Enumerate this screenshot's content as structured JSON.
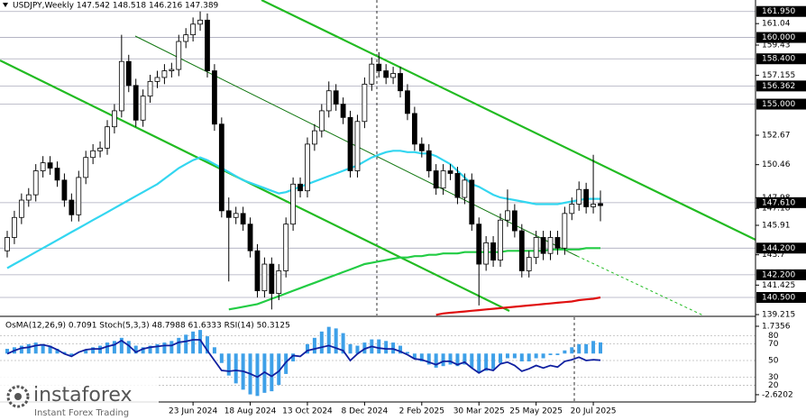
{
  "chart_data": {
    "type": "candlestick",
    "title": "USDJPY,Weekly  147.542 148.518 146.216 147.389",
    "categories": [
      null,
      null,
      null,
      null,
      null,
      null,
      null,
      null,
      null,
      null,
      null,
      null,
      null,
      null,
      null,
      null,
      null,
      null,
      null,
      null,
      null,
      null,
      null,
      null,
      null,
      null,
      "23 Jun 2024",
      null,
      null,
      null,
      null,
      null,
      null,
      null,
      "18 Aug 2024",
      null,
      null,
      null,
      null,
      null,
      null,
      null,
      "13 Oct 2024",
      null,
      null,
      null,
      null,
      null,
      null,
      null,
      "8 Dec 2024",
      null,
      null,
      null,
      null,
      null,
      null,
      null,
      "2 Feb 2025",
      null,
      null,
      null,
      null,
      null,
      null,
      null,
      "30 Mar 2025",
      null,
      null,
      null,
      null,
      null,
      null,
      null,
      "25 May 2025",
      null,
      null,
      null,
      null,
      null,
      null,
      null,
      "20 Jul 2025",
      null
    ],
    "open": [
      144.0,
      145.0,
      146.5,
      147.8,
      148.2,
      150.0,
      150.6,
      150.2,
      149.3,
      147.8,
      146.7,
      149.5,
      151.0,
      151.5,
      151.7,
      153.3,
      154.5,
      158.2,
      156.4,
      153.8,
      155.6,
      156.7,
      157.0,
      157.5,
      157.6,
      159.7,
      160.2,
      161.0,
      161.3,
      157.5,
      153.5,
      147.0,
      146.5,
      146.8,
      146.0,
      144.0,
      141.0,
      143.0,
      140.8,
      142.5,
      146.0,
      149.0,
      148.5,
      152.0,
      153.0,
      154.5,
      156.0,
      155.0,
      154.0,
      150.0,
      153.7,
      156.5,
      158.0,
      157.5,
      157.0,
      157.3,
      156.0,
      154.3,
      152.0,
      151.5,
      150.0,
      148.7,
      150.0,
      149.8,
      148.0,
      149.3,
      146.0,
      143.0,
      144.6,
      143.3,
      146.3,
      147.0,
      145.5,
      142.5,
      143.5,
      145.0,
      143.8,
      145.0,
      144.2,
      146.8,
      147.5,
      148.6,
      147.3,
      147.542
    ],
    "high": [
      145.5,
      147.0,
      148.3,
      148.7,
      150.5,
      151.1,
      151.1,
      150.7,
      149.8,
      148.3,
      150.0,
      151.5,
      152.0,
      152.2,
      153.8,
      155.0,
      160.2,
      158.7,
      156.9,
      156.1,
      157.2,
      157.5,
      158.0,
      158.1,
      160.2,
      160.7,
      161.5,
      161.95,
      161.8,
      158.0,
      154.0,
      148.0,
      147.3,
      147.3,
      146.5,
      144.5,
      143.5,
      143.5,
      143.0,
      146.5,
      149.5,
      149.5,
      152.5,
      153.5,
      155.0,
      156.7,
      156.5,
      155.5,
      154.5,
      154.2,
      157.0,
      158.5,
      158.9,
      158.0,
      157.8,
      157.8,
      156.5,
      154.8,
      152.5,
      152.0,
      150.5,
      150.5,
      150.5,
      150.3,
      149.8,
      149.8,
      146.5,
      145.1,
      145.1,
      146.8,
      148.6,
      147.5,
      146.0,
      144.0,
      145.5,
      145.5,
      145.5,
      145.5,
      147.3,
      148.0,
      149.2,
      149.1,
      151.2,
      148.518
    ],
    "low": [
      143.5,
      144.5,
      146.0,
      147.3,
      147.7,
      149.5,
      149.7,
      148.8,
      147.3,
      146.2,
      146.2,
      149.0,
      150.5,
      151.0,
      151.2,
      152.8,
      154.0,
      155.9,
      153.3,
      153.3,
      155.1,
      156.2,
      156.5,
      157.0,
      157.1,
      159.2,
      159.7,
      160.5,
      157.0,
      153.0,
      146.5,
      141.7,
      146.0,
      145.5,
      143.5,
      140.5,
      140.5,
      139.6,
      140.3,
      142.0,
      145.5,
      148.0,
      148.0,
      151.5,
      152.5,
      154.0,
      154.5,
      153.5,
      149.5,
      149.5,
      153.2,
      156.0,
      157.0,
      156.5,
      156.5,
      155.5,
      153.8,
      151.5,
      151.0,
      149.5,
      148.2,
      148.2,
      149.3,
      147.5,
      147.5,
      145.5,
      139.9,
      142.5,
      142.8,
      142.8,
      145.8,
      145.0,
      142.0,
      142.0,
      143.0,
      143.3,
      143.3,
      143.7,
      143.7,
      146.3,
      147.0,
      146.8,
      146.8,
      146.216
    ],
    "close": [
      145.0,
      146.5,
      147.8,
      148.2,
      150.0,
      150.6,
      150.2,
      149.3,
      147.8,
      146.7,
      149.5,
      151.0,
      151.5,
      151.7,
      153.3,
      154.5,
      158.2,
      156.4,
      153.8,
      155.6,
      156.7,
      157.0,
      157.5,
      157.6,
      159.7,
      160.2,
      161.0,
      161.3,
      157.5,
      153.5,
      147.0,
      146.5,
      146.8,
      146.0,
      144.0,
      141.0,
      143.0,
      140.8,
      142.5,
      146.0,
      149.0,
      148.5,
      152.0,
      153.0,
      154.5,
      156.0,
      155.0,
      154.0,
      150.0,
      153.7,
      156.5,
      158.0,
      157.5,
      157.0,
      157.3,
      156.0,
      154.3,
      152.0,
      151.5,
      150.0,
      148.7,
      150.0,
      149.8,
      148.0,
      149.3,
      146.0,
      143.0,
      144.6,
      143.3,
      146.3,
      147.0,
      145.5,
      142.5,
      143.5,
      145.0,
      143.8,
      145.0,
      144.2,
      146.8,
      147.5,
      148.6,
      147.3,
      147.5,
      147.389
    ],
    "ylim": [
      139.15,
      162.81
    ],
    "yticks": [
      161.04,
      159.43,
      157.155,
      152.67,
      150.46,
      147.98,
      147.18,
      145.91,
      143.7,
      141.425,
      139.215
    ],
    "levels": [
      {
        "value": 161.95,
        "label": "161.950"
      },
      {
        "value": 160.0,
        "label": "160.000"
      },
      {
        "value": 158.4,
        "label": "158.400"
      },
      {
        "value": 156.362,
        "label": "156.362"
      },
      {
        "value": 155.0,
        "label": "155.000"
      },
      {
        "value": 147.61,
        "label": "147.610"
      },
      {
        "value": 144.2,
        "label": "144.200"
      },
      {
        "value": 142.2,
        "label": "142.200"
      },
      {
        "value": 140.5,
        "label": "140.500"
      }
    ],
    "ma": [
      {
        "color": "#33d6f0",
        "values": [
          142.7,
          143.0,
          143.3,
          143.6,
          143.9,
          144.2,
          144.5,
          144.8,
          145.1,
          145.4,
          145.7,
          146.0,
          146.3,
          146.6,
          146.9,
          147.2,
          147.5,
          147.8,
          148.1,
          148.4,
          148.7,
          149.0,
          149.4,
          149.8,
          150.2,
          150.5,
          150.8,
          151.0,
          150.8,
          150.5,
          150.2,
          149.9,
          149.6,
          149.3,
          149.1,
          148.9,
          148.7,
          148.5,
          148.3,
          148.4,
          148.6,
          148.8,
          149.0,
          149.2,
          149.4,
          149.6,
          149.8,
          150.0,
          150.2,
          150.4,
          150.7,
          151.0,
          151.2,
          151.4,
          151.5,
          151.5,
          151.4,
          151.4,
          151.3,
          151.3,
          151.1,
          150.8,
          150.5,
          150.0,
          149.5,
          149.0,
          148.8,
          148.5,
          148.2,
          148.0,
          147.9,
          147.8,
          147.7,
          147.6,
          147.5,
          147.5,
          147.5,
          147.5,
          147.6,
          147.7,
          147.8,
          147.9,
          147.9,
          147.9
        ]
      },
      {
        "color": "#22cc44",
        "values": [
          null,
          null,
          null,
          null,
          null,
          null,
          null,
          null,
          null,
          null,
          null,
          null,
          null,
          null,
          null,
          null,
          null,
          null,
          null,
          null,
          null,
          null,
          null,
          null,
          null,
          null,
          null,
          null,
          null,
          null,
          null,
          139.6,
          139.7,
          139.8,
          139.9,
          140.0,
          140.2,
          140.4,
          140.6,
          140.8,
          141.0,
          141.2,
          141.4,
          141.6,
          141.8,
          142.0,
          142.2,
          142.4,
          142.6,
          142.8,
          143.0,
          143.1,
          143.2,
          143.3,
          143.4,
          143.5,
          143.5,
          143.6,
          143.6,
          143.7,
          143.7,
          143.8,
          143.8,
          143.8,
          143.9,
          143.9,
          143.9,
          143.9,
          143.9,
          143.9,
          144.0,
          144.0,
          144.0,
          144.0,
          144.0,
          144.0,
          144.1,
          144.1,
          144.1,
          144.1,
          144.1,
          144.2,
          144.2,
          144.2
        ]
      },
      {
        "color": "#e01010",
        "values": [
          null,
          null,
          null,
          null,
          null,
          null,
          null,
          null,
          null,
          null,
          null,
          null,
          null,
          null,
          null,
          null,
          null,
          null,
          null,
          null,
          null,
          null,
          null,
          null,
          null,
          null,
          null,
          null,
          null,
          null,
          null,
          null,
          null,
          null,
          null,
          null,
          null,
          null,
          null,
          null,
          null,
          null,
          null,
          null,
          null,
          null,
          null,
          null,
          null,
          null,
          null,
          null,
          null,
          null,
          null,
          null,
          null,
          null,
          null,
          null,
          139.2,
          139.3,
          139.35,
          139.4,
          139.45,
          139.5,
          139.55,
          139.6,
          139.65,
          139.7,
          139.75,
          139.8,
          139.85,
          139.9,
          139.95,
          140.0,
          140.05,
          140.1,
          140.15,
          140.2,
          140.3,
          140.35,
          140.4,
          140.5
        ]
      }
    ],
    "indicator": {
      "header": "OsMA(12,26,9) 0.7091  Stoch(5,3,3) 48.7988 61.6333  RSI(14) 50.3125",
      "osma_color": "#3ea0e8",
      "osma": [
        0.3,
        0.4,
        0.5,
        0.6,
        0.7,
        0.6,
        0.5,
        0.3,
        0.1,
        -0.1,
        0.0,
        0.2,
        0.4,
        0.5,
        0.7,
        0.8,
        1.0,
        0.8,
        0.5,
        0.4,
        0.5,
        0.6,
        0.7,
        0.8,
        1.0,
        1.2,
        1.4,
        1.5,
        1.1,
        0.4,
        -0.6,
        -1.4,
        -1.9,
        -2.3,
        -2.6,
        -2.7,
        -2.5,
        -2.4,
        -2.0,
        -1.3,
        -0.5,
        0.0,
        0.6,
        1.0,
        1.4,
        1.7,
        1.6,
        1.3,
        0.6,
        0.5,
        0.7,
        0.9,
        0.9,
        0.8,
        0.7,
        0.5,
        0.1,
        -0.3,
        -0.5,
        -0.7,
        -0.9,
        -0.8,
        -0.7,
        -0.8,
        -0.7,
        -0.9,
        -1.2,
        -1.1,
        -1.0,
        -0.6,
        -0.3,
        -0.3,
        -0.5,
        -0.5,
        -0.3,
        -0.3,
        -0.1,
        -0.1,
        0.2,
        0.4,
        0.6,
        0.6,
        0.8,
        0.7091
      ],
      "osma_lim": [
        -4.23,
        2.31
      ],
      "osma_ticks": [
        {
          "value": 1.7356,
          "label": "1.7356"
        },
        {
          "value": -2.6202,
          "label": "-2.6202"
        }
      ],
      "rsi_color": "#1020a0",
      "rsi": [
        58,
        62,
        65,
        66,
        68,
        69,
        67,
        63,
        58,
        55,
        60,
        63,
        64,
        64,
        67,
        69,
        74,
        68,
        60,
        64,
        66,
        67,
        68,
        68,
        72,
        73,
        75,
        75,
        62,
        50,
        38,
        37,
        38,
        37,
        34,
        30,
        36,
        31,
        37,
        48,
        56,
        55,
        62,
        64,
        66,
        68,
        65,
        62,
        50,
        58,
        64,
        67,
        65,
        64,
        64,
        61,
        57,
        52,
        51,
        48,
        45,
        49,
        49,
        45,
        48,
        41,
        35,
        40,
        38,
        46,
        48,
        44,
        37,
        40,
        44,
        41,
        44,
        42,
        49,
        51,
        54,
        50,
        51,
        50.3125
      ],
      "rsi_lim": [
        -21.8,
        102.2
      ],
      "rsi_ticks": [
        80,
        70,
        50,
        30,
        20
      ]
    },
    "watermark": {
      "brand": "instaforex",
      "tagline": "Instant Forex Trading"
    }
  }
}
